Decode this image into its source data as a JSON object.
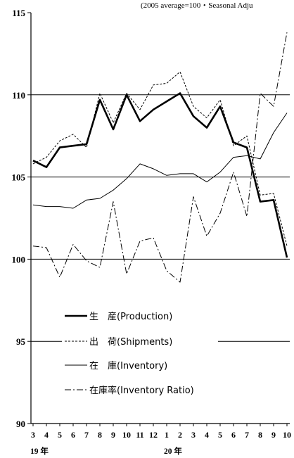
{
  "chart_data": {
    "type": "line",
    "note": "(2005 average=100・Seasonal Adju",
    "categories": [
      "3",
      "4",
      "5",
      "6",
      "7",
      "8",
      "9",
      "10",
      "11",
      "12",
      "1",
      "2",
      "3",
      "4",
      "5",
      "6",
      "7",
      "8",
      "9",
      "10"
    ],
    "year_labels": [
      {
        "text": "19 年",
        "index": 0
      },
      {
        "text": "20 年",
        "index": 10
      }
    ],
    "ylim": [
      90,
      115
    ],
    "yticks": [
      90,
      95,
      100,
      105,
      110,
      115
    ],
    "reference_lines": [
      95,
      100,
      105,
      110
    ],
    "series": [
      {
        "key": "production",
        "name": "生　産(Production)",
        "style": "thick",
        "values": [
          106.0,
          105.6,
          106.8,
          106.9,
          107.0,
          109.7,
          107.9,
          110.0,
          108.4,
          109.1,
          109.6,
          110.1,
          108.7,
          108.0,
          109.3,
          107.1,
          106.8,
          103.5,
          103.6,
          100.1
        ]
      },
      {
        "key": "shipments",
        "name": "出　荷(Shipments)",
        "style": "dashed",
        "values": [
          105.8,
          106.2,
          107.2,
          107.6,
          106.8,
          110.1,
          108.3,
          110.1,
          109.1,
          110.6,
          110.7,
          111.4,
          109.3,
          108.6,
          109.7,
          106.9,
          107.5,
          103.9,
          104.0,
          100.8
        ]
      },
      {
        "key": "inventory",
        "name": "在　庫(Inventory)",
        "style": "thin",
        "values": [
          103.3,
          103.2,
          103.2,
          103.1,
          103.6,
          103.7,
          104.2,
          104.9,
          105.8,
          105.5,
          105.1,
          105.2,
          105.2,
          104.7,
          105.3,
          106.2,
          106.3,
          106.1,
          107.7,
          108.9
        ]
      },
      {
        "key": "inventory_ratio",
        "name": "在庫率(Inventory Ratio)",
        "style": "dashdot",
        "values": [
          100.8,
          100.7,
          98.9,
          100.9,
          99.9,
          99.5,
          103.5,
          99.1,
          101.1,
          101.3,
          99.3,
          98.6,
          103.8,
          101.4,
          102.8,
          105.3,
          102.6,
          110.1,
          109.3,
          113.8
        ]
      }
    ],
    "legend_position": "lower-left"
  }
}
